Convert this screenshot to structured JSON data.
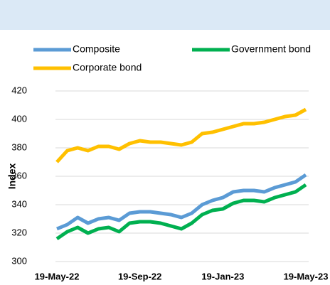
{
  "chart_data": {
    "type": "line",
    "ylabel": "Index",
    "categories": [
      "19-May-22",
      null,
      null,
      null,
      null,
      null,
      null,
      null,
      "19-Sep-22",
      null,
      null,
      null,
      null,
      null,
      null,
      null,
      "19-Jan-23",
      null,
      null,
      null,
      null,
      null,
      null,
      null,
      "19-May-23"
    ],
    "series": [
      {
        "name": "Composite",
        "color": "#5b9bd5",
        "values": [
          323,
          326,
          331,
          327,
          330,
          331,
          329,
          334,
          335,
          335,
          334,
          333,
          331,
          334,
          340,
          343,
          345,
          349,
          350,
          350,
          349,
          352,
          354,
          356,
          361
        ]
      },
      {
        "name": "Government bond",
        "color": "#00b050",
        "values": [
          316,
          321,
          324,
          320,
          323,
          324,
          321,
          327,
          328,
          328,
          327,
          325,
          323,
          327,
          333,
          336,
          337,
          341,
          343,
          343,
          342,
          345,
          347,
          349,
          354
        ]
      },
      {
        "name": "Corporate bond",
        "color": "#ffc000",
        "values": [
          370,
          378,
          380,
          378,
          381,
          381,
          379,
          383,
          385,
          384,
          384,
          383,
          382,
          384,
          390,
          391,
          393,
          395,
          397,
          397,
          398,
          400,
          402,
          403,
          407
        ]
      }
    ],
    "ylim": [
      300,
      420
    ],
    "yticks": [
      300,
      320,
      340,
      360,
      380,
      400,
      420
    ],
    "grid": true
  }
}
